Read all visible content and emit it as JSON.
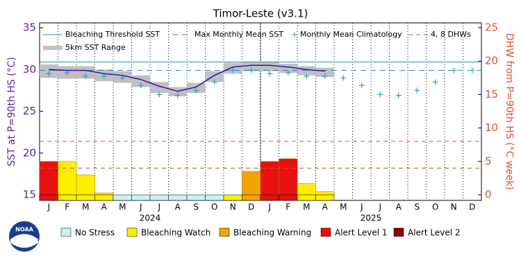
{
  "chart_data": {
    "type": "coral-bleaching",
    "title": "Timor-Leste (v3.1)",
    "ylabel": "SST at P=90th HS (°C)",
    "y2label": "DHW from P=90th HS (°C week)",
    "categories": [
      "J",
      "F",
      "M",
      "A",
      "M",
      "J",
      "J",
      "A",
      "S",
      "O",
      "N",
      "D",
      "J",
      "F",
      "M",
      "A",
      "M",
      "J",
      "J",
      "A",
      "S",
      "O",
      "N",
      "D"
    ],
    "years": [
      "2024",
      "2025"
    ],
    "ylim": [
      15,
      35
    ],
    "yticks": [
      15,
      20,
      25,
      30,
      35
    ],
    "y2lim": [
      0,
      25
    ],
    "y2ticks": [
      0,
      5,
      10,
      15,
      20,
      25
    ],
    "threshold": {
      "name": "Bleaching Threshold SST",
      "value": 30.9,
      "color": "#1f8fbf"
    },
    "mmm": {
      "name": "Max Monthly Mean SST",
      "value": 29.9,
      "color": "#1f8fbf"
    },
    "climatology": {
      "name": "Monthly Mean Climatology",
      "color": "#2a9fd6",
      "values": [
        29.5,
        29.6,
        29.2,
        29.2,
        29.0,
        28.1,
        27.0,
        26.9,
        27.5,
        28.5,
        29.9,
        29.9,
        29.5,
        29.6,
        29.2,
        29.2,
        29.0,
        28.1,
        27.0,
        26.9,
        27.5,
        28.5,
        29.9,
        29.9
      ]
    },
    "dhw_lines": {
      "name": "4, 8 DHWs",
      "values": [
        4,
        8
      ],
      "color": "#e0502a"
    },
    "sst": {
      "color": "#3a10b0",
      "values": [
        30.0,
        29.9,
        29.9,
        29.5,
        29.3,
        28.8,
        28.0,
        27.4,
        27.9,
        29.3,
        30.3,
        30.5,
        30.5,
        30.3,
        30.0,
        29.8,
        null,
        null,
        null,
        null,
        null,
        null,
        null,
        null
      ]
    },
    "sst_range": {
      "name": "5km SST Range",
      "color": "#c0c0c0",
      "low": [
        29.0,
        28.9,
        28.9,
        28.6,
        28.4,
        27.9,
        27.2,
        26.8,
        27.2,
        28.5,
        29.5,
        29.8,
        29.8,
        29.6,
        29.3,
        29.1,
        null,
        null,
        null,
        null,
        null,
        null,
        null,
        null
      ],
      "high": [
        30.6,
        30.4,
        30.4,
        30.0,
        29.8,
        29.3,
        28.5,
        27.9,
        28.4,
        29.8,
        30.8,
        30.9,
        30.9,
        30.7,
        30.4,
        30.2,
        null,
        null,
        null,
        null,
        null,
        null,
        null,
        null
      ]
    },
    "dhw": {
      "axis": "y2",
      "values": [
        5.0,
        5.0,
        3.0,
        0.3,
        0,
        0,
        0,
        0,
        0,
        0,
        0,
        3.5,
        5.0,
        5.4,
        1.7,
        0.5,
        null,
        null,
        null,
        null,
        null,
        null,
        null,
        null
      ]
    },
    "stress": {
      "levels": [
        {
          "name": "No Stress",
          "color": "#c8f0f0"
        },
        {
          "name": "Bleaching Watch",
          "color": "#ffee00"
        },
        {
          "name": "Bleaching Warning",
          "color": "#f5a300"
        },
        {
          "name": "Alert Level 1",
          "color": "#e81010"
        },
        {
          "name": "Alert Level 2",
          "color": "#8b0000"
        }
      ],
      "values": [
        "Alert Level 1",
        "Bleaching Watch",
        "Bleaching Watch",
        "Bleaching Watch",
        "No Stress",
        "No Stress",
        "No Stress",
        "No Stress",
        "No Stress",
        "No Stress",
        "Bleaching Watch",
        "Bleaching Warning",
        "Alert Level 1",
        "Alert Level 1",
        "Bleaching Watch",
        "Bleaching Watch",
        null,
        null,
        null,
        null,
        null,
        null,
        null,
        null
      ]
    }
  }
}
